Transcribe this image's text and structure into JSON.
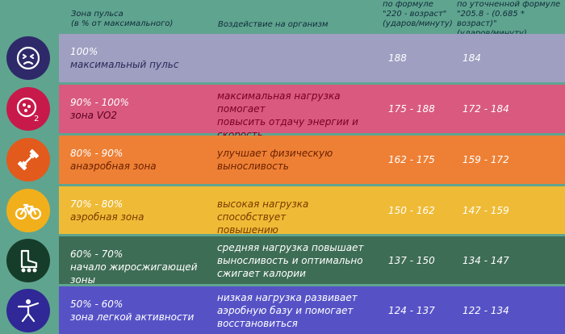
{
  "header": {
    "zone": "Зона пульса\n(в % от максимального)",
    "effect": "Воздействие на организм",
    "formula1": "по формуле\n\"220 - возраст\"\n(ударов/минуту)",
    "formula2": "по уточненной формуле\n\"205.8 - (0.685 * возраст)\"\n(ударов/минуту)"
  },
  "rows": [
    {
      "percent": "100%",
      "zone": "максимальный пульс",
      "effect": "",
      "formula1": "188",
      "formula2": "184",
      "row_color": "#9e9fc1",
      "icon_bg": "#2e2a6a",
      "icon": "face-icon"
    },
    {
      "percent": "90% - 100%",
      "zone": "зона VO2",
      "effect": "максимальная нагрузка помогает\nповысить отдачу энергии и\nскорость",
      "formula1": "175 - 188",
      "formula2": "172 - 184",
      "row_color": "#d9597f",
      "icon_bg": "#c7194a",
      "icon": "oxygen-icon"
    },
    {
      "percent": "80% - 90%",
      "zone": "анаэробная зона",
      "effect": "улучшает физическую\nвыносливость",
      "formula1": "162 - 175",
      "formula2": "159 - 172",
      "row_color": "#ee8035",
      "icon_bg": "#e25a1c",
      "icon": "dumbbell-icon"
    },
    {
      "percent": "70% - 80%",
      "zone": "аэробная зона",
      "effect": "высокая нагрузка способствует\nповышению кардиовыносливости",
      "formula1": "150 - 162",
      "formula2": "147 - 159",
      "row_color": "#efbb36",
      "icon_bg": "#f1b01b",
      "icon": "bicycle-icon"
    },
    {
      "percent": "60% - 70%",
      "zone": "начало жиросжигающей\nзоны",
      "effect": "средняя нагрузка повышает\nвыносливость и оптимально\nсжигает калории",
      "formula1": "137 - 150",
      "formula2": "134 - 147",
      "row_color": "#3e6d55",
      "icon_bg": "#163c2a",
      "icon": "roller-skate-icon"
    },
    {
      "percent": "50% - 60%",
      "zone": "зона легкой активности",
      "effect": "низкая нагрузка развивает\nаэробную базу и помогает\nвосстановиться",
      "formula1": "124 - 137",
      "formula2": "122 - 134",
      "row_color": "#5652c6",
      "icon_bg": "#2f2896",
      "icon": "person-stretch-icon"
    }
  ]
}
